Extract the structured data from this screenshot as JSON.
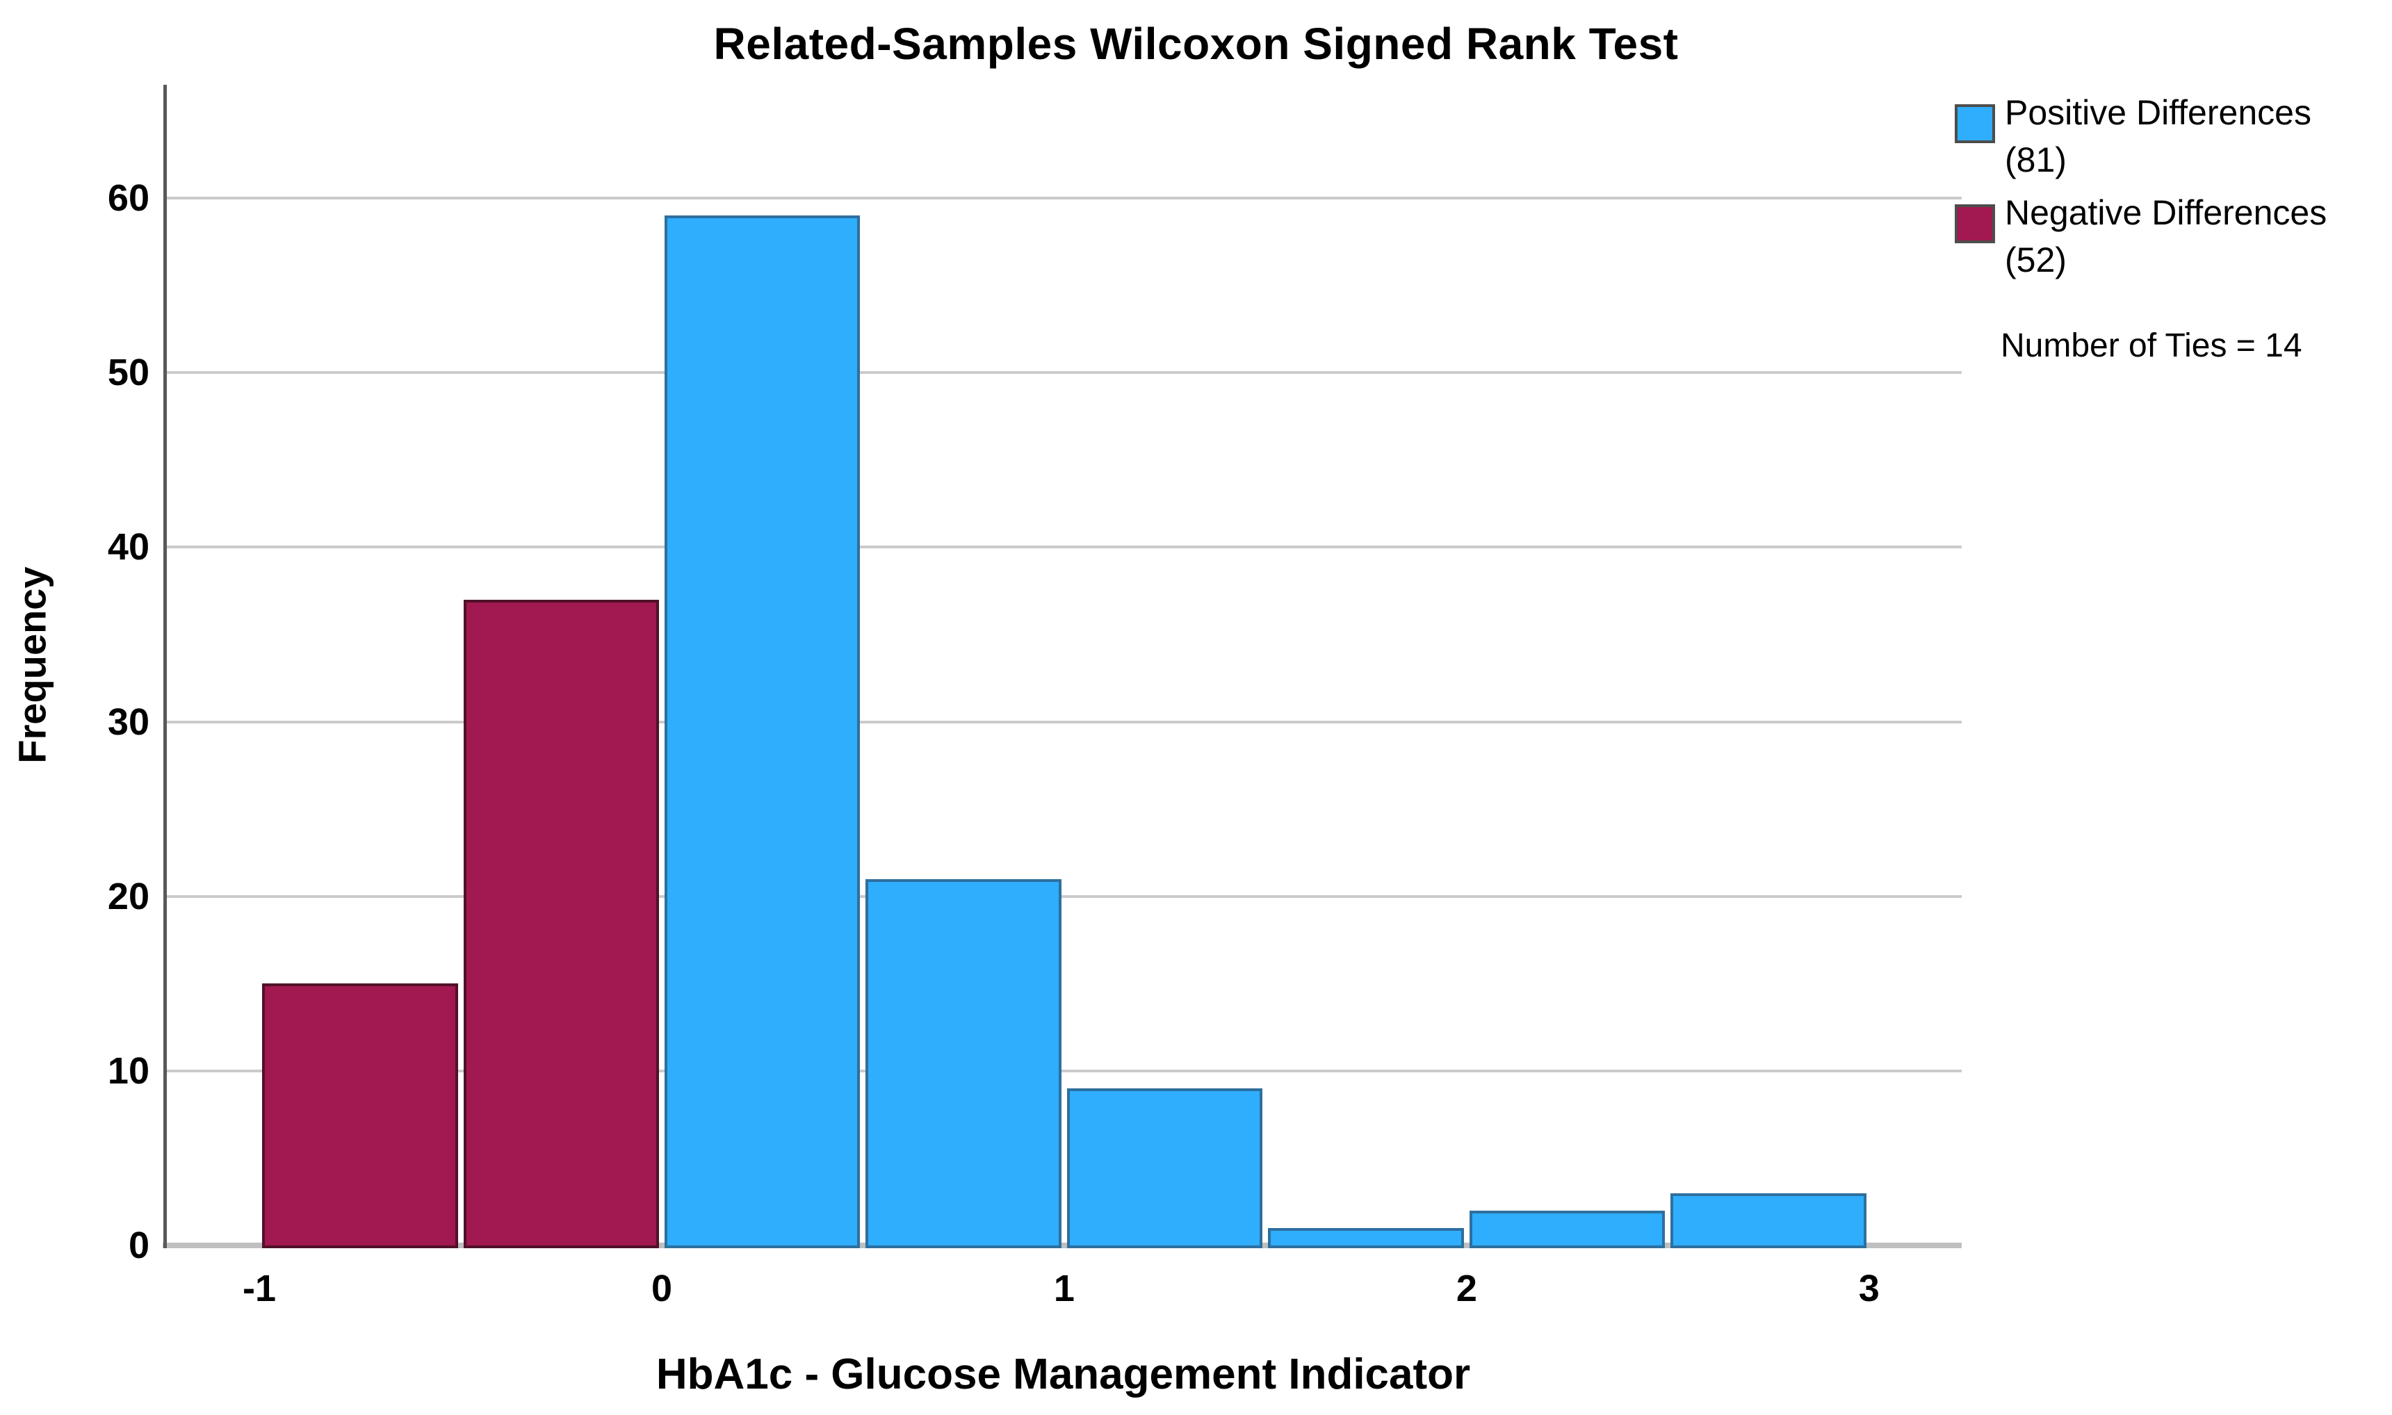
{
  "chart_data": {
    "type": "bar",
    "subtype": "histogram",
    "title": "Related-Samples Wilcoxon Signed Rank Test",
    "xlabel": "HbA1c - Glucose Management Indicator",
    "ylabel": "Frequency",
    "x_ticks": [
      "-1",
      "0",
      "1",
      "2",
      "3"
    ],
    "x_tick_values": [
      -1,
      0,
      1,
      2,
      3
    ],
    "y_ticks": [
      0,
      10,
      20,
      30,
      40,
      50,
      60
    ],
    "xlim": [
      -1.235,
      3.23
    ],
    "ylim": [
      0,
      66.5
    ],
    "bin_width": 0.5,
    "grid": "horizontal",
    "legend_position": "top-right",
    "bars": [
      {
        "x_start": -1.0,
        "x_end": -0.5,
        "frequency": 15,
        "series": "negative"
      },
      {
        "x_start": -0.5,
        "x_end": 0.0,
        "frequency": 37,
        "series": "negative"
      },
      {
        "x_start": 0.0,
        "x_end": 0.5,
        "frequency": 59,
        "series": "positive"
      },
      {
        "x_start": 0.5,
        "x_end": 1.0,
        "frequency": 21,
        "series": "positive"
      },
      {
        "x_start": 1.0,
        "x_end": 1.5,
        "frequency": 9,
        "series": "positive"
      },
      {
        "x_start": 1.5,
        "x_end": 2.0,
        "frequency": 1,
        "series": "positive"
      },
      {
        "x_start": 2.0,
        "x_end": 2.5,
        "frequency": 2,
        "series": "positive"
      },
      {
        "x_start": 2.5,
        "x_end": 3.0,
        "frequency": 3,
        "series": "positive"
      }
    ]
  },
  "legend": {
    "items": [
      {
        "series": "positive",
        "label": "Positive Differences",
        "count_label": "(81)"
      },
      {
        "series": "negative",
        "label": "Negative Differences",
        "count_label": "(52)"
      }
    ],
    "ties_note": "Number of Ties = 14"
  },
  "colors": {
    "positive": "#2EAEFD",
    "positive_border": "#2E6F9F",
    "negative": "#A21850",
    "negative_border": "#511129",
    "gridline": "#CBCBCB",
    "y_axis": "#59595B",
    "x_axis": "#BFBFBF",
    "swatch_border": "#4D4D4D",
    "text": "#000000",
    "background": "#FFFFFF"
  }
}
